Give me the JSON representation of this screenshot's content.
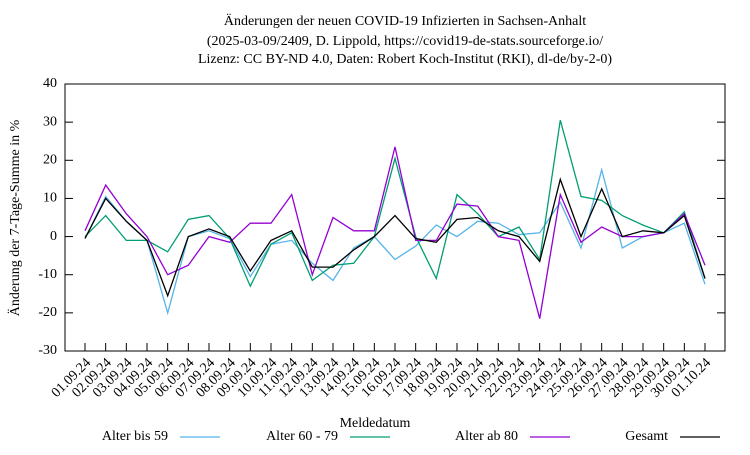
{
  "chart_data": {
    "type": "line",
    "title": [
      "Änderungen der neuen COVID-19 Infizierten in Sachsen-Anhalt",
      "(2025-03-09/2409, D. Lippold, https://covid19-de-stats.sourceforge.io/",
      "Lizenz: CC BY-ND 4.0, Daten: Robert Koch-Institut (RKI), dl-de/by-2-0)"
    ],
    "x_label": "Meldedatum",
    "y_label": "Änderung der 7-Tage-Summe in %",
    "categories": [
      "01.09.24",
      "02.09.24",
      "03.09.24",
      "04.09.24",
      "05.09.24",
      "06.09.24",
      "07.09.24",
      "08.09.24",
      "09.09.24",
      "10.09.24",
      "11.09.24",
      "12.09.24",
      "13.09.24",
      "14.09.24",
      "15.09.24",
      "16.09.24",
      "17.09.24",
      "18.09.24",
      "19.09.24",
      "20.09.24",
      "21.09.24",
      "22.09.24",
      "23.09.24",
      "24.09.24",
      "25.09.24",
      "26.09.24",
      "27.09.24",
      "28.09.24",
      "29.09.24",
      "30.09.24",
      "01.10.24"
    ],
    "series": [
      {
        "name": "Alter bis 59",
        "color": "#56b4e9",
        "values": [
          -0.5,
          10.5,
          4,
          -1,
          -20,
          0,
          1.5,
          -0.5,
          -10.5,
          -2,
          -1,
          -7,
          -11.5,
          -3,
          0,
          -6,
          -2.5,
          3,
          0,
          4,
          3.5,
          0.5,
          1,
          9,
          -3,
          17.5,
          -3,
          0,
          1,
          3.5,
          -12.5
        ]
      },
      {
        "name": "Alter 60 - 79",
        "color": "#009e73",
        "values": [
          0,
          5.5,
          -1,
          -1,
          -4,
          4.5,
          5.5,
          -0.5,
          -13,
          -2,
          1,
          -11.5,
          -7.5,
          -7,
          0,
          20.5,
          0,
          -11,
          11,
          6,
          0,
          2.5,
          -6,
          30.5,
          10.5,
          9.5,
          5.5,
          3,
          1,
          6.5,
          -11
        ]
      },
      {
        "name": "Alter ab 80",
        "color": "#9400d3",
        "values": [
          1.5,
          13.5,
          6,
          0,
          -10,
          -7.5,
          0,
          -1.5,
          3.5,
          3.5,
          11,
          -10,
          5,
          1.5,
          1.5,
          23.5,
          -1,
          -1,
          8.5,
          8,
          0,
          -1,
          -21.5,
          11,
          -1.5,
          2.5,
          0,
          0,
          1,
          6,
          -7.5
        ]
      },
      {
        "name": "Gesamt",
        "color": "#000000",
        "values": [
          -0.5,
          10,
          4,
          -1,
          -15.5,
          0,
          2,
          0,
          -9,
          -1,
          1.5,
          -8,
          -8,
          -3.5,
          0,
          5.5,
          -0.5,
          -1.5,
          4.5,
          5,
          1.5,
          0,
          -6.5,
          15,
          0,
          12.5,
          0,
          1.5,
          1,
          5.5,
          -11
        ]
      }
    ],
    "ylim": [
      -30,
      40
    ],
    "yticks": [
      -30,
      -20,
      -10,
      0,
      10,
      20,
      30,
      40
    ],
    "grid": false
  }
}
